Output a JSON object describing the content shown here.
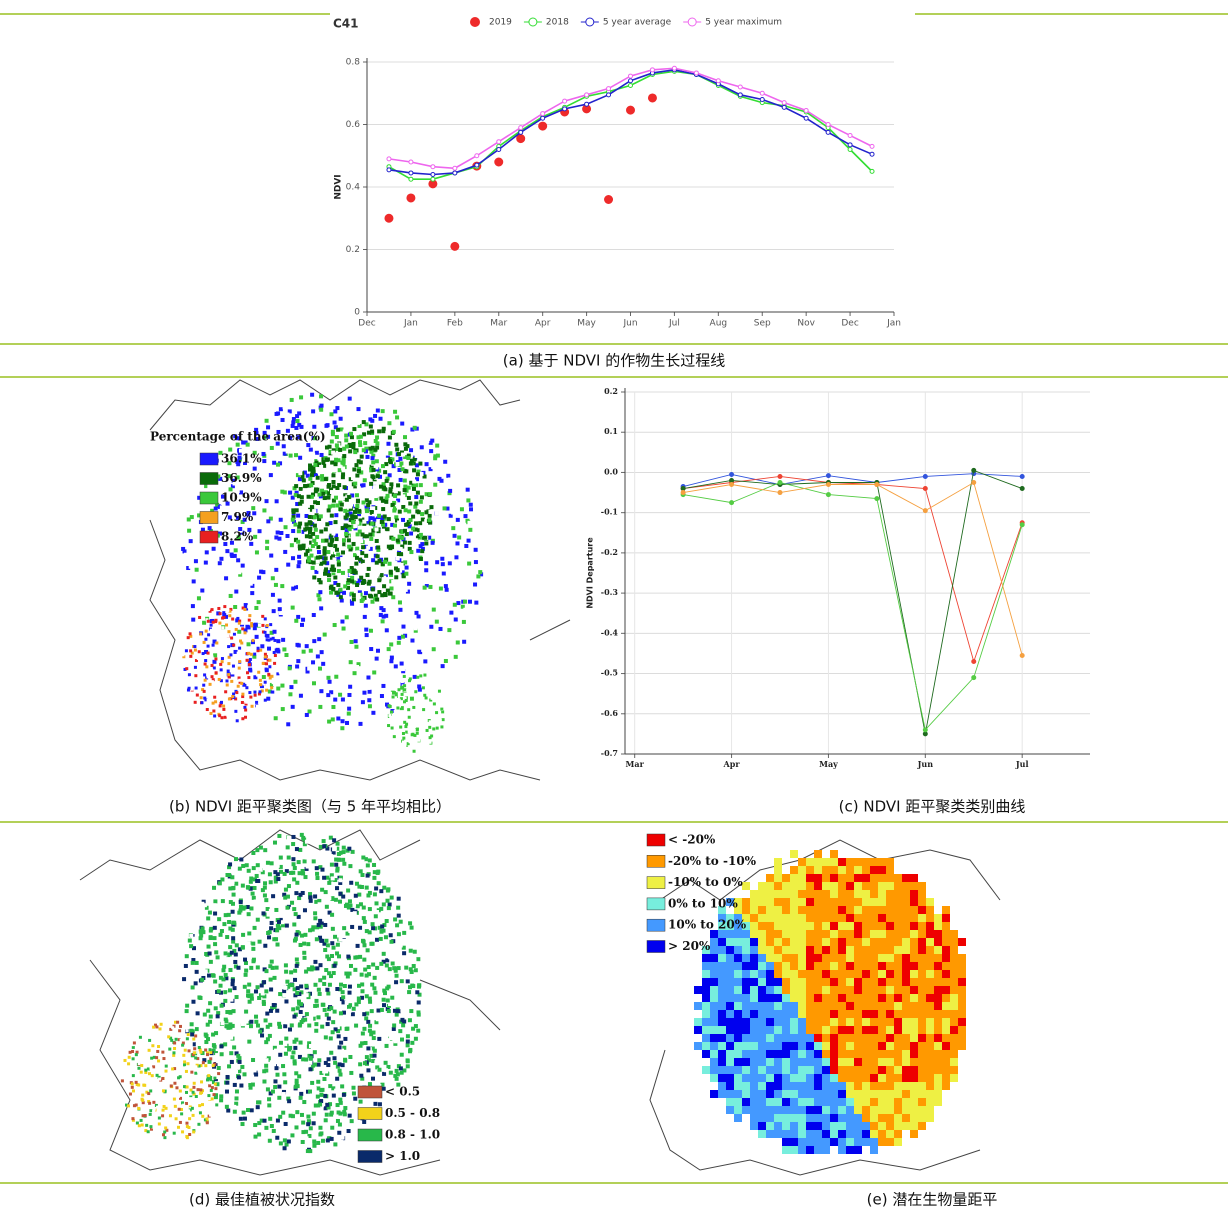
{
  "chart_data": [
    {
      "type": "line",
      "title": "C41",
      "y_label": "NDVI",
      "xlim": [
        0,
        12
      ],
      "xticks": [
        {
          "value": 0,
          "label": "Dec"
        },
        {
          "value": 1,
          "label": "Jan"
        },
        {
          "value": 2,
          "label": "Feb"
        },
        {
          "value": 3,
          "label": "Mar"
        },
        {
          "value": 4,
          "label": "Apr"
        },
        {
          "value": 5,
          "label": "May"
        },
        {
          "value": 6,
          "label": "Jun"
        },
        {
          "value": 7,
          "label": "Jul"
        },
        {
          "value": 8,
          "label": "Aug"
        },
        {
          "value": 9,
          "label": "Sep"
        },
        {
          "value": 10,
          "label": "Nov"
        },
        {
          "value": 11,
          "label": "Dec"
        },
        {
          "value": 12,
          "label": "Jan"
        }
      ],
      "ylim": [
        0,
        0.8
      ],
      "yticks": [
        0,
        0.2,
        0.4,
        0.6,
        0.8
      ],
      "grid": true,
      "series": [
        {
          "name": "2019",
          "color": "#ee2a2a",
          "mode": "markers",
          "x": [
            0.5,
            1,
            1.5,
            2,
            2.5,
            3,
            3.5,
            4,
            4.5,
            5,
            5.5,
            6,
            6.5
          ],
          "values": [
            0.3,
            0.365,
            0.41,
            0.21,
            0.467,
            0.48,
            0.555,
            0.595,
            0.64,
            0.65,
            0.36,
            0.646,
            0.685
          ]
        },
        {
          "name": "2018",
          "color": "#33dd33",
          "mode": "lines",
          "x": [
            0.5,
            1,
            1.5,
            2,
            2.5,
            3,
            3.5,
            4,
            4.5,
            5,
            5.5,
            6,
            6.5,
            7,
            7.5,
            8,
            8.5,
            9,
            9.5,
            10,
            10.5,
            11,
            11.5
          ],
          "values": [
            0.465,
            0.425,
            0.425,
            0.445,
            0.465,
            0.53,
            0.58,
            0.625,
            0.655,
            0.69,
            0.705,
            0.725,
            0.76,
            0.77,
            0.76,
            0.725,
            0.69,
            0.67,
            0.66,
            0.64,
            0.59,
            0.52,
            0.45
          ]
        },
        {
          "name": "5 year average",
          "color": "#2222cc",
          "mode": "lines",
          "x": [
            0.5,
            1,
            1.5,
            2,
            2.5,
            3,
            3.5,
            4,
            4.5,
            5,
            5.5,
            6,
            6.5,
            7,
            7.5,
            8,
            8.5,
            9,
            9.5,
            10,
            10.5,
            11,
            11.5
          ],
          "values": [
            0.455,
            0.445,
            0.44,
            0.445,
            0.47,
            0.52,
            0.575,
            0.62,
            0.65,
            0.665,
            0.695,
            0.74,
            0.765,
            0.775,
            0.76,
            0.73,
            0.695,
            0.68,
            0.655,
            0.62,
            0.575,
            0.535,
            0.505
          ]
        },
        {
          "name": "5 year maximum",
          "color": "#ee66ee",
          "mode": "lines",
          "x": [
            0.5,
            1,
            1.5,
            2,
            2.5,
            3,
            3.5,
            4,
            4.5,
            5,
            5.5,
            6,
            6.5,
            7,
            7.5,
            8,
            8.5,
            9,
            9.5,
            10,
            10.5,
            11,
            11.5
          ],
          "values": [
            0.49,
            0.48,
            0.465,
            0.46,
            0.5,
            0.545,
            0.59,
            0.635,
            0.675,
            0.695,
            0.715,
            0.755,
            0.775,
            0.78,
            0.765,
            0.74,
            0.72,
            0.7,
            0.67,
            0.645,
            0.6,
            0.565,
            0.53
          ]
        }
      ]
    },
    {
      "type": "line",
      "y_label": "NDVI Departure",
      "xlim": [
        -0.1,
        4.7
      ],
      "xticks": [
        {
          "value": 0,
          "label": "Mar"
        },
        {
          "value": 1,
          "label": "Apr"
        },
        {
          "value": 2,
          "label": "May"
        },
        {
          "value": 3,
          "label": "Jun"
        },
        {
          "value": 4,
          "label": "Jul"
        }
      ],
      "ylim": [
        -0.7,
        0.2
      ],
      "yticks": [
        0.2,
        0.1,
        {
          "value": 0,
          "label": "0.0"
        },
        -0.1,
        -0.2,
        -0.3,
        -0.4,
        -0.5,
        -0.6,
        -0.7
      ],
      "grid": true,
      "series": [
        {
          "color": "#3355dd",
          "x": [
            0.5,
            1,
            1.5,
            2,
            2.5,
            3,
            3.5,
            4
          ],
          "values": [
            -0.035,
            -0.005,
            -0.03,
            -0.008,
            -0.025,
            -0.01,
            -0.003,
            -0.01
          ]
        },
        {
          "color": "#ee4433",
          "x": [
            0.5,
            1,
            1.5,
            2,
            2.5,
            3,
            3.5,
            4
          ],
          "values": [
            -0.04,
            -0.025,
            -0.01,
            -0.025,
            -0.03,
            -0.04,
            -0.47,
            -0.125
          ]
        },
        {
          "color": "#1f6a1f",
          "x": [
            0.5,
            1,
            1.5,
            2,
            2.5,
            3,
            3.5,
            4
          ],
          "values": [
            -0.04,
            -0.02,
            -0.03,
            -0.025,
            -0.025,
            -0.65,
            0.005,
            -0.04
          ]
        },
        {
          "color": "#55cc44",
          "x": [
            0.5,
            1,
            1.5,
            2,
            2.5,
            3,
            3.5,
            4
          ],
          "values": [
            -0.055,
            -0.075,
            -0.025,
            -0.055,
            -0.065,
            -0.64,
            -0.51,
            -0.13
          ]
        },
        {
          "color": "#f5a040",
          "x": [
            0.5,
            1,
            1.5,
            2,
            2.5,
            3,
            3.5,
            4
          ],
          "values": [
            -0.05,
            -0.03,
            -0.05,
            -0.03,
            -0.03,
            -0.095,
            -0.025,
            -0.455
          ]
        }
      ]
    }
  ],
  "panels": {
    "a": {
      "caption": "(a) 基于 NDVI 的作物生长过程线"
    },
    "b": {
      "caption": "(b) NDVI 距平聚类图（与 5 年平均相比）",
      "legend_title": "Percentage of the area(%)",
      "legend": [
        {
          "label": "36.1%",
          "color": "#1a1aff"
        },
        {
          "label": "36.9%",
          "color": "#0a6a0a"
        },
        {
          "label": "10.9%",
          "color": "#3ac83a"
        },
        {
          "label": "7.9%",
          "color": "#f5a020"
        },
        {
          "label": "8.2%",
          "color": "#e82020"
        }
      ]
    },
    "c": {
      "caption": "(c) NDVI 距平聚类类别曲线"
    },
    "d": {
      "caption": "(d) 最佳植被状况指数",
      "legend": [
        {
          "label": "< 0.5",
          "color": "#c0543a"
        },
        {
          "label": "0.5 - 0.8",
          "color": "#f2d21a"
        },
        {
          "label": "0.8 - 1.0",
          "color": "#28b84a"
        },
        {
          "label": "> 1.0",
          "color": "#0a2a6a"
        }
      ]
    },
    "e": {
      "caption": "(e) 潜在生物量距平",
      "legend": [
        {
          "label": "< -20%",
          "color": "#ee0000"
        },
        {
          "label": "-20% to -10%",
          "color": "#ff9900"
        },
        {
          "label": "-10% to 0%",
          "color": "#eef044"
        },
        {
          "label": "0% to 10%",
          "color": "#77eedd"
        },
        {
          "label": "10% to 20%",
          "color": "#4499ff"
        },
        {
          "label": "> 20%",
          "color": "#0000ee"
        }
      ]
    }
  }
}
